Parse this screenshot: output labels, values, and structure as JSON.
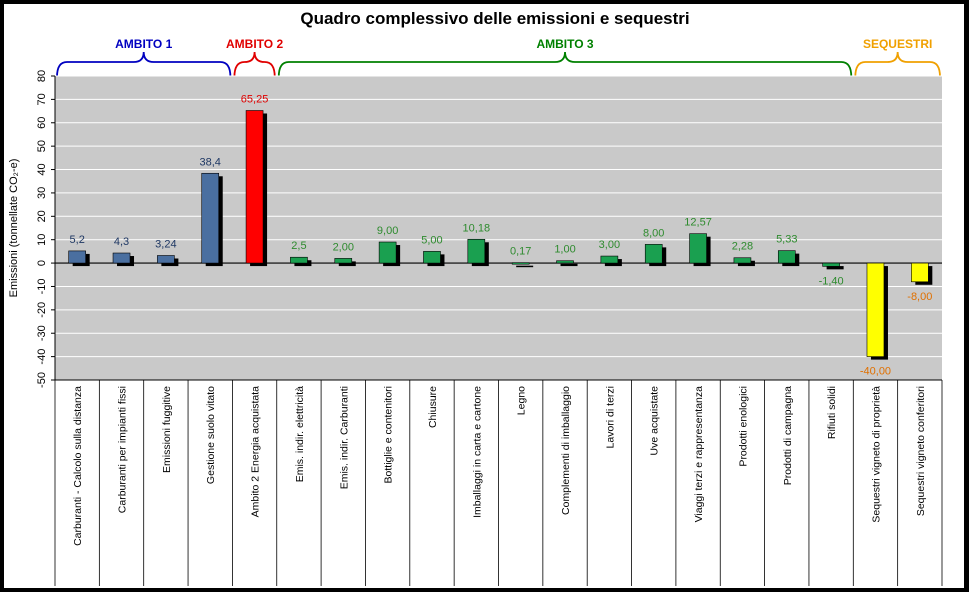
{
  "chart_data": {
    "type": "bar",
    "title": "Quadro complessivo delle emissioni e sequestri",
    "ylabel": "Emissioni (tonnellate CO₂-e)",
    "ylim": [
      -50,
      80
    ],
    "yticks": [
      80,
      70,
      60,
      50,
      40,
      30,
      20,
      10,
      0,
      -10,
      -20,
      -30,
      -40,
      -50
    ],
    "grid": true,
    "categories": [
      "Carburanti - Calcolo sulla distanza",
      "Carburanti per impianti fissi",
      "Emissioni fuggitive",
      "Gestione suolo vitato",
      "Ambito 2 Energia acquistata",
      "Emis. indir. elettricità",
      "Emis. indir. Carburanti",
      "Bottiglie e contenitori",
      "Chiusure",
      "Imballaggi in carta e cartone",
      "Legno",
      "Complementi di imballaggio",
      "Lavori di terzi",
      "Uve acquistate",
      "Viaggi terzi e rappresentanza",
      "Prodotti enologici",
      "Prodotti di campagna",
      "Rifiuti solidi",
      "Sequestri vigneto di proprietà",
      "Sequestri vigneto conferitori"
    ],
    "values": [
      5.2,
      4.3,
      3.24,
      38.4,
      65.25,
      2.5,
      2.0,
      9.0,
      5.0,
      10.18,
      0.17,
      1.0,
      3.0,
      8.0,
      12.57,
      2.28,
      5.33,
      -1.4,
      -40.0,
      -8.0
    ],
    "data_labels": [
      "5,2",
      "4,3",
      "3,24",
      "38,4",
      "65,25",
      "2,5",
      "2,00",
      "9,00",
      "5,00",
      "10,18",
      "0,17",
      "1,00",
      "3,00",
      "8,00",
      "12,57",
      "2,28",
      "5,33",
      "-1,40",
      "-40,00",
      "-8,00"
    ],
    "groups": [
      {
        "label": "AMBITO 1",
        "start": 0,
        "end": 3,
        "color": "#0000c0"
      },
      {
        "label": "AMBITO 2",
        "start": 4,
        "end": 4,
        "color": "#e00000"
      },
      {
        "label": "AMBITO 3",
        "start": 5,
        "end": 17,
        "color": "#008000"
      },
      {
        "label": "SEQUESTRI",
        "start": 18,
        "end": 19,
        "color": "#f0a000"
      }
    ],
    "bar_colors": {
      "ambito1": "#4a6fa0",
      "ambito2": "#ff0000",
      "ambito3": "#1aa050",
      "sequestri": "#ffff00"
    },
    "label_colors": {
      "ambito1": "#1f3864",
      "ambito2": "#e00000",
      "ambito3": "#2e8b2e",
      "sequestri": "#e07000"
    }
  }
}
